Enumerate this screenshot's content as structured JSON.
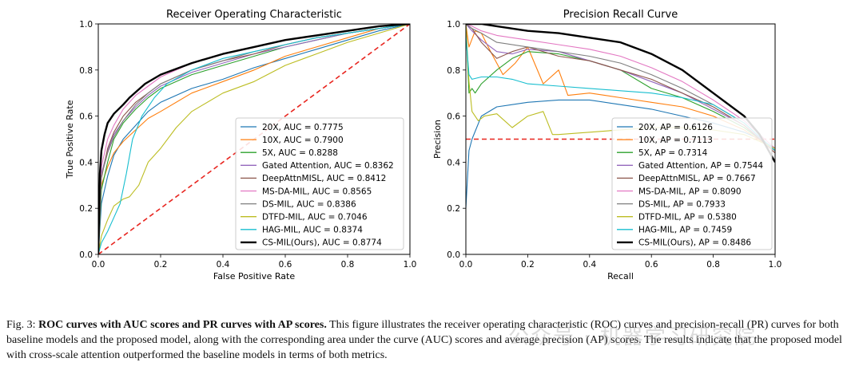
{
  "chart_data": [
    {
      "type": "line",
      "title": "Receiver Operating Characteristic",
      "xlabel": "False Positive Rate",
      "ylabel": "True Positive Rate",
      "xlim": [
        0,
        1
      ],
      "ylim": [
        0,
        1
      ],
      "xticks": [
        "0.0",
        "0.2",
        "0.4",
        "0.6",
        "0.8",
        "1.0"
      ],
      "yticks": [
        "0.0",
        "0.2",
        "0.4",
        "0.6",
        "0.8",
        "1.0"
      ],
      "legend_position": "lower-right",
      "reference_line": {
        "style": "dashed",
        "color": "#e8251f",
        "x": [
          0,
          1
        ],
        "y": [
          0,
          1
        ]
      },
      "series": [
        {
          "name": "20X, AUC = 0.7775",
          "color": "#1f77b4",
          "x": [
            0,
            0.01,
            0.03,
            0.05,
            0.08,
            0.12,
            0.16,
            0.2,
            0.3,
            0.4,
            0.5,
            0.6,
            0.7,
            0.8,
            0.9,
            1.0
          ],
          "y": [
            0,
            0.22,
            0.34,
            0.43,
            0.5,
            0.56,
            0.62,
            0.66,
            0.72,
            0.76,
            0.81,
            0.85,
            0.89,
            0.93,
            0.97,
            1.0
          ]
        },
        {
          "name": "10X, AUC = 0.7900",
          "color": "#ff7f0e",
          "x": [
            0,
            0.01,
            0.03,
            0.05,
            0.08,
            0.12,
            0.16,
            0.2,
            0.3,
            0.4,
            0.5,
            0.6,
            0.7,
            0.8,
            0.9,
            1.0
          ],
          "y": [
            0,
            0.3,
            0.38,
            0.44,
            0.49,
            0.54,
            0.59,
            0.62,
            0.7,
            0.75,
            0.8,
            0.86,
            0.9,
            0.94,
            0.98,
            1.0
          ]
        },
        {
          "name": "5X, AUC = 0.8288",
          "color": "#2ca02c",
          "x": [
            0,
            0.01,
            0.03,
            0.05,
            0.08,
            0.12,
            0.16,
            0.2,
            0.3,
            0.4,
            0.5,
            0.6,
            0.7,
            0.8,
            0.9,
            1.0
          ],
          "y": [
            0,
            0.28,
            0.4,
            0.5,
            0.57,
            0.63,
            0.68,
            0.72,
            0.78,
            0.82,
            0.86,
            0.9,
            0.93,
            0.96,
            0.98,
            1.0
          ]
        },
        {
          "name": "Gated Attention, AUC = 0.8362",
          "color": "#9467bd",
          "x": [
            0,
            0.01,
            0.03,
            0.05,
            0.08,
            0.12,
            0.16,
            0.2,
            0.3,
            0.4,
            0.5,
            0.6,
            0.7,
            0.8,
            0.9,
            1.0
          ],
          "y": [
            0,
            0.35,
            0.45,
            0.52,
            0.58,
            0.64,
            0.69,
            0.73,
            0.79,
            0.83,
            0.87,
            0.9,
            0.93,
            0.96,
            0.98,
            1.0
          ]
        },
        {
          "name": "DeepAttnMISL, AUC = 0.8412",
          "color": "#8c564b",
          "x": [
            0,
            0.01,
            0.03,
            0.05,
            0.08,
            0.12,
            0.16,
            0.2,
            0.3,
            0.4,
            0.5,
            0.6,
            0.7,
            0.8,
            0.9,
            1.0
          ],
          "y": [
            0,
            0.33,
            0.46,
            0.53,
            0.6,
            0.66,
            0.7,
            0.74,
            0.8,
            0.84,
            0.87,
            0.91,
            0.94,
            0.96,
            0.98,
            1.0
          ]
        },
        {
          "name": "MS-DA-MIL, AUC = 0.8565",
          "color": "#e377c2",
          "x": [
            0,
            0.01,
            0.03,
            0.05,
            0.08,
            0.12,
            0.16,
            0.2,
            0.3,
            0.4,
            0.5,
            0.6,
            0.7,
            0.8,
            0.9,
            1.0
          ],
          "y": [
            0,
            0.38,
            0.5,
            0.56,
            0.63,
            0.69,
            0.73,
            0.77,
            0.83,
            0.87,
            0.9,
            0.93,
            0.95,
            0.97,
            0.99,
            1.0
          ]
        },
        {
          "name": "DS-MIL, AUC = 0.8386",
          "color": "#7f7f7f",
          "x": [
            0,
            0.01,
            0.03,
            0.05,
            0.08,
            0.12,
            0.16,
            0.2,
            0.3,
            0.4,
            0.5,
            0.6,
            0.7,
            0.8,
            0.9,
            1.0
          ],
          "y": [
            0,
            0.34,
            0.44,
            0.51,
            0.58,
            0.65,
            0.7,
            0.74,
            0.8,
            0.84,
            0.88,
            0.91,
            0.94,
            0.96,
            0.98,
            1.0
          ]
        },
        {
          "name": "DTFD-MIL, AUC = 0.7046",
          "color": "#bcbd22",
          "x": [
            0,
            0.01,
            0.03,
            0.05,
            0.08,
            0.1,
            0.13,
            0.16,
            0.2,
            0.25,
            0.3,
            0.4,
            0.5,
            0.6,
            0.7,
            0.8,
            0.9,
            1.0
          ],
          "y": [
            0,
            0.08,
            0.15,
            0.21,
            0.24,
            0.25,
            0.3,
            0.4,
            0.46,
            0.55,
            0.62,
            0.7,
            0.75,
            0.82,
            0.87,
            0.92,
            0.96,
            1.0
          ]
        },
        {
          "name": "HAG-MIL, AUC = 0.8374",
          "color": "#17becf",
          "x": [
            0,
            0.01,
            0.03,
            0.05,
            0.07,
            0.09,
            0.11,
            0.14,
            0.18,
            0.22,
            0.3,
            0.4,
            0.5,
            0.6,
            0.7,
            0.8,
            0.9,
            1.0
          ],
          "y": [
            0,
            0.05,
            0.1,
            0.16,
            0.22,
            0.35,
            0.5,
            0.6,
            0.68,
            0.74,
            0.8,
            0.85,
            0.88,
            0.91,
            0.94,
            0.96,
            0.98,
            1.0
          ]
        },
        {
          "name": "CS-MIL(Ours), AUC = 0.8774",
          "color": "#000000",
          "x": [
            0,
            0.005,
            0.01,
            0.02,
            0.03,
            0.05,
            0.08,
            0.1,
            0.15,
            0.2,
            0.3,
            0.4,
            0.5,
            0.6,
            0.7,
            0.8,
            0.9,
            1.0
          ],
          "y": [
            0,
            0.35,
            0.45,
            0.52,
            0.57,
            0.61,
            0.65,
            0.68,
            0.74,
            0.78,
            0.83,
            0.87,
            0.9,
            0.93,
            0.95,
            0.97,
            0.99,
            1.0
          ]
        }
      ]
    },
    {
      "type": "line",
      "title": "Precision Recall Curve",
      "xlabel": "Recall",
      "ylabel": "Precision",
      "xlim": [
        0,
        1
      ],
      "ylim": [
        0,
        1
      ],
      "xticks": [
        "0.0",
        "0.2",
        "0.4",
        "0.6",
        "0.8",
        "1.0"
      ],
      "yticks": [
        "0.0",
        "0.2",
        "0.4",
        "0.6",
        "0.8",
        "1.0"
      ],
      "legend_position": "lower-right",
      "reference_line": {
        "style": "dashed",
        "color": "#e8251f",
        "x": [
          0,
          1
        ],
        "y": [
          0.5,
          0.5
        ]
      },
      "series": [
        {
          "name": "20X, AP = 0.6126",
          "color": "#1f77b4",
          "x": [
            0,
            0.01,
            0.02,
            0.05,
            0.1,
            0.2,
            0.3,
            0.4,
            0.5,
            0.6,
            0.7,
            0.8,
            0.9,
            0.95,
            1.0
          ],
          "y": [
            0.2,
            0.45,
            0.5,
            0.6,
            0.64,
            0.66,
            0.67,
            0.67,
            0.65,
            0.63,
            0.6,
            0.57,
            0.53,
            0.5,
            0.46
          ]
        },
        {
          "name": "10X, AP = 0.7113",
          "color": "#ff7f0e",
          "x": [
            0,
            0.01,
            0.03,
            0.05,
            0.08,
            0.12,
            0.16,
            0.2,
            0.25,
            0.3,
            0.33,
            0.4,
            0.5,
            0.6,
            0.7,
            0.8,
            0.9,
            1.0
          ],
          "y": [
            1.0,
            0.9,
            0.97,
            0.96,
            0.88,
            0.78,
            0.83,
            0.9,
            0.74,
            0.8,
            0.69,
            0.7,
            0.68,
            0.66,
            0.64,
            0.6,
            0.54,
            0.45
          ]
        },
        {
          "name": "5X, AP = 0.7314",
          "color": "#2ca02c",
          "x": [
            0,
            0.01,
            0.02,
            0.03,
            0.05,
            0.1,
            0.15,
            0.2,
            0.3,
            0.4,
            0.5,
            0.6,
            0.7,
            0.8,
            0.9,
            1.0
          ],
          "y": [
            1.0,
            0.7,
            0.72,
            0.7,
            0.74,
            0.8,
            0.85,
            0.88,
            0.87,
            0.84,
            0.8,
            0.72,
            0.68,
            0.62,
            0.55,
            0.45
          ]
        },
        {
          "name": "Gated Attention, AP = 0.7544",
          "color": "#9467bd",
          "x": [
            0,
            0.02,
            0.05,
            0.1,
            0.15,
            0.2,
            0.3,
            0.4,
            0.5,
            0.6,
            0.7,
            0.8,
            0.9,
            1.0
          ],
          "y": [
            1.0,
            0.97,
            0.93,
            0.88,
            0.87,
            0.89,
            0.88,
            0.84,
            0.8,
            0.75,
            0.7,
            0.63,
            0.56,
            0.45
          ]
        },
        {
          "name": "DeepAttnMISL, AP = 0.7667",
          "color": "#8c564b",
          "x": [
            0,
            0.02,
            0.05,
            0.1,
            0.15,
            0.2,
            0.3,
            0.4,
            0.5,
            0.6,
            0.7,
            0.8,
            0.9,
            1.0
          ],
          "y": [
            1.0,
            0.98,
            0.92,
            0.85,
            0.88,
            0.9,
            0.86,
            0.84,
            0.8,
            0.76,
            0.7,
            0.64,
            0.56,
            0.44
          ]
        },
        {
          "name": "MS-DA-MIL, AP = 0.8090",
          "color": "#e377c2",
          "x": [
            0,
            0.02,
            0.05,
            0.1,
            0.2,
            0.3,
            0.4,
            0.5,
            0.6,
            0.7,
            0.8,
            0.9,
            1.0
          ],
          "y": [
            1.0,
            0.99,
            0.97,
            0.95,
            0.93,
            0.91,
            0.89,
            0.86,
            0.81,
            0.75,
            0.67,
            0.58,
            0.46
          ]
        },
        {
          "name": "DS-MIL, AP = 0.7933",
          "color": "#7f7f7f",
          "x": [
            0,
            0.02,
            0.05,
            0.1,
            0.2,
            0.3,
            0.4,
            0.5,
            0.6,
            0.7,
            0.8,
            0.9,
            1.0
          ],
          "y": [
            1.0,
            0.98,
            0.96,
            0.92,
            0.9,
            0.88,
            0.86,
            0.83,
            0.78,
            0.72,
            0.65,
            0.57,
            0.45
          ]
        },
        {
          "name": "DTFD-MIL, AP = 0.5380",
          "color": "#bcbd22",
          "x": [
            0,
            0.01,
            0.02,
            0.04,
            0.06,
            0.1,
            0.15,
            0.2,
            0.25,
            0.28,
            0.3,
            0.4,
            0.5,
            0.6,
            0.7,
            0.8,
            0.9,
            1.0
          ],
          "y": [
            1.0,
            0.75,
            0.62,
            0.58,
            0.6,
            0.61,
            0.55,
            0.6,
            0.62,
            0.52,
            0.52,
            0.53,
            0.54,
            0.55,
            0.55,
            0.54,
            0.52,
            0.46
          ]
        },
        {
          "name": "HAG-MIL, AP = 0.7459",
          "color": "#17becf",
          "x": [
            0,
            0.01,
            0.02,
            0.05,
            0.1,
            0.15,
            0.2,
            0.3,
            0.4,
            0.5,
            0.6,
            0.7,
            0.8,
            0.9,
            1.0
          ],
          "y": [
            0.95,
            0.78,
            0.76,
            0.77,
            0.77,
            0.76,
            0.74,
            0.73,
            0.72,
            0.71,
            0.7,
            0.68,
            0.65,
            0.57,
            0.45
          ]
        },
        {
          "name": "CS-MIL(Ours), AP = 0.8486",
          "color": "#000000",
          "x": [
            0,
            0.05,
            0.1,
            0.15,
            0.2,
            0.3,
            0.4,
            0.5,
            0.6,
            0.7,
            0.8,
            0.9,
            0.95,
            1.0
          ],
          "y": [
            1.0,
            1.0,
            0.99,
            0.98,
            0.97,
            0.96,
            0.94,
            0.92,
            0.87,
            0.8,
            0.7,
            0.6,
            0.52,
            0.4
          ]
        }
      ]
    }
  ],
  "caption": {
    "label": "Fig. 3:",
    "bold": "ROC curves with AUC scores and PR curves with AP scores.",
    "text": "This figure illustrates the receiver operating characteristic (ROC) curves and precision-recall (PR) curves for both baseline models and the proposed model, along with the corresponding area under the curve (AUC) scores and average precision (AP) scores. The results indicate that the proposed model with cross-scale attention outperformed the baseline models in terms of both metrics."
  },
  "watermark": "公众号 · 机器学习研究院"
}
